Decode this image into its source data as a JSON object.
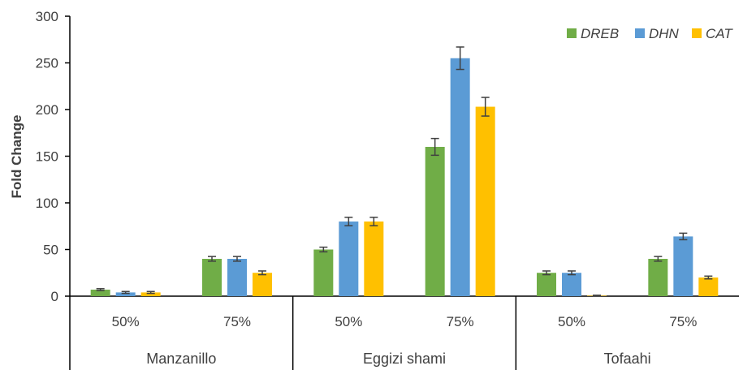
{
  "chart_data": {
    "type": "bar",
    "ylabel": "Fold Change",
    "xlabel": "",
    "ylim": [
      0,
      300
    ],
    "yticks": [
      0,
      50,
      100,
      150,
      200,
      250,
      300
    ],
    "legend_position": "top-right",
    "grid": false,
    "groups": [
      {
        "label": "Manzanillo",
        "categories": [
          "50%",
          "75%"
        ]
      },
      {
        "label": "Eggizi shami",
        "categories": [
          "50%",
          "75%"
        ]
      },
      {
        "label": "Tofaahi",
        "categories": [
          "50%",
          "75%"
        ]
      }
    ],
    "series": [
      {
        "name": "DREB",
        "color": "#70AD47",
        "values": [
          7,
          40,
          50,
          160,
          25,
          40
        ],
        "errors": [
          1,
          2.5,
          2.5,
          9,
          2,
          2.5
        ]
      },
      {
        "name": "DHN",
        "color": "#5B9BD5",
        "values": [
          4,
          40,
          80,
          255,
          25,
          64
        ],
        "errors": [
          1,
          2.5,
          4.5,
          12,
          2,
          3.5
        ]
      },
      {
        "name": "CAT",
        "color": "#FFC000",
        "values": [
          4,
          25,
          80,
          203,
          0.5,
          20
        ],
        "errors": [
          1,
          2,
          4.5,
          10,
          0.5,
          1.5
        ]
      }
    ]
  }
}
